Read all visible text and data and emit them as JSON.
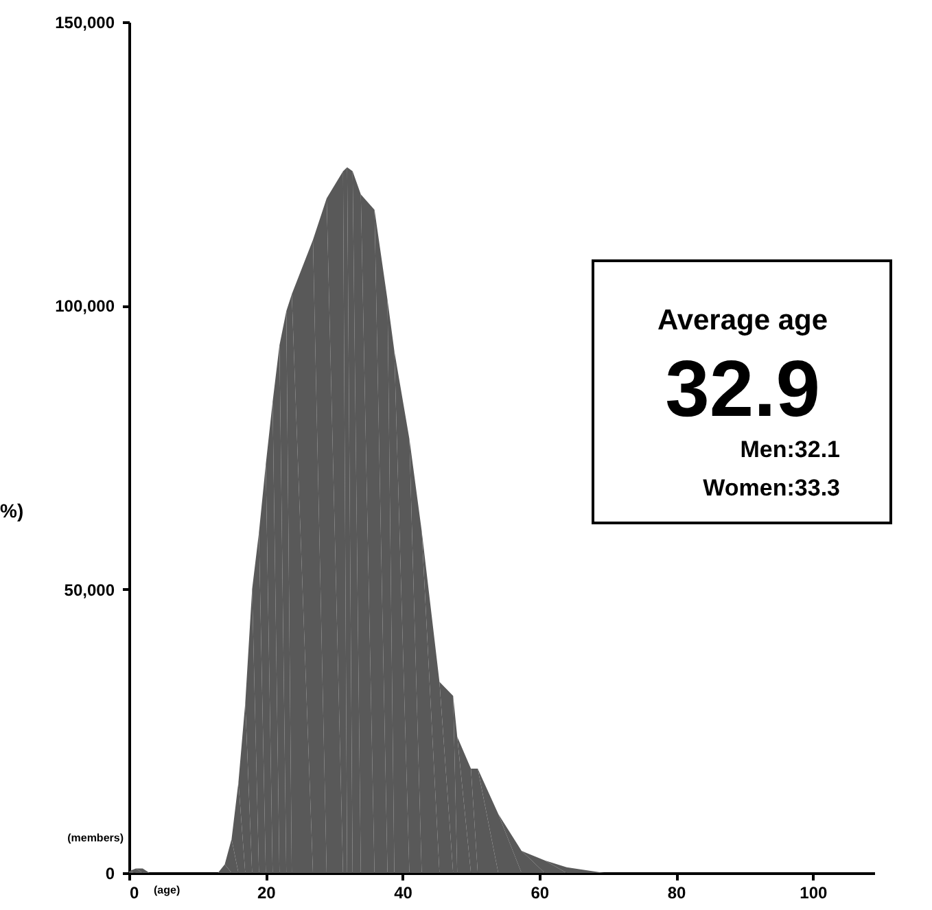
{
  "chart_data": {
    "type": "area",
    "xlabel": "(age)",
    "ylabel": "(members)",
    "annotations": [
      "Average age",
      "32.9",
      "Men:32.1",
      "Women:33.3",
      "%)"
    ],
    "series": [
      {
        "color": "#595959",
        "x": [
          0,
          1,
          2,
          3,
          13,
          14,
          15,
          16,
          17,
          18,
          19,
          20,
          21,
          22,
          23,
          23.8,
          26.9,
          28.9,
          31.3,
          31.9,
          32.7,
          33.9,
          35.9,
          37.8,
          38.8,
          41,
          42.8,
          45.4,
          47.4,
          48,
          50,
          51,
          54,
          57.4,
          60.8,
          64,
          69.5,
          109
        ],
        "values": [
          300,
          800,
          800,
          0,
          0,
          1500,
          6000,
          16000,
          30000,
          50000,
          60000,
          72000,
          83000,
          93000,
          99000,
          102000,
          111600,
          118900,
          123700,
          124400,
          123700,
          119600,
          116900,
          101000,
          92000,
          76500,
          60300,
          33700,
          31200,
          24000,
          18400,
          18400,
          10400,
          3900,
          2200,
          1000,
          0,
          0
        ]
      }
    ],
    "xlim": [
      0,
      109
    ],
    "ylim": [
      0,
      150000
    ],
    "xticks": [
      0,
      20,
      40,
      60,
      80,
      100
    ],
    "yticks": [
      {
        "value": 0,
        "label": "0"
      },
      {
        "value": 50000,
        "label": "50,000"
      },
      {
        "value": 100000,
        "label": "100,000"
      },
      {
        "value": 150000,
        "label": "150,000"
      }
    ],
    "grid": false
  }
}
